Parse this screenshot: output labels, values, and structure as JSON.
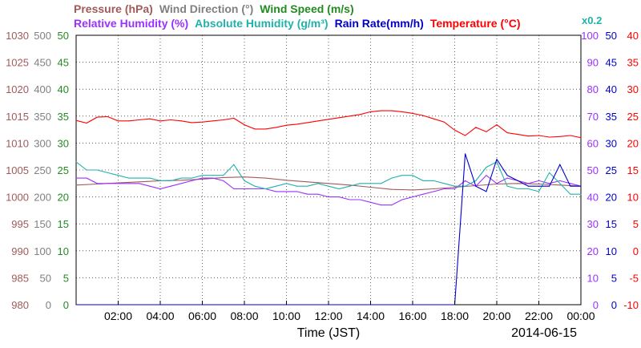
{
  "chart_data": {
    "type": "line",
    "xlabel": "Time (JST)",
    "date_label": "2014-06-15",
    "x_ticks": [
      "02:00",
      "04:00",
      "06:00",
      "08:00",
      "10:00",
      "12:00",
      "14:00",
      "16:00",
      "18:00",
      "20:00",
      "22:00",
      "00:00"
    ],
    "x_range_hours": [
      0,
      24
    ],
    "grid": true,
    "legend_row1": [
      {
        "text": "Pressure (hPa)",
        "color": "#a05a5a"
      },
      {
        "text": "Wind Direction (°)",
        "color": "#808080"
      },
      {
        "text": "Wind Speed (m/s)",
        "color": "#228b22"
      }
    ],
    "legend_row2": [
      {
        "text": "Relative Humidity (%)",
        "color": "#9b30ff"
      },
      {
        "text": "Absolute Humidity (g/m³)",
        "color": "#20b2aa"
      },
      {
        "text": "Rain Rate(mm/h)",
        "color": "#0000cd"
      },
      {
        "text": "Temperature (°C)",
        "color": "#ff0000"
      }
    ],
    "abs_humidity_scale_note": "x0.2",
    "axes": {
      "pressure": {
        "ticks": [
          "1030",
          "1025",
          "1020",
          "1015",
          "1010",
          "1005",
          "1000",
          "995",
          "990",
          "985",
          "980"
        ],
        "range": [
          980,
          1030
        ],
        "color": "#a05a5a"
      },
      "wind_direction": {
        "ticks": [
          "500",
          "450",
          "400",
          "350",
          "300",
          "250",
          "200",
          "150",
          "100",
          "50",
          "0"
        ],
        "range": [
          0,
          500
        ],
        "color": "#808080"
      },
      "wind_speed": {
        "ticks": [
          "50",
          "45",
          "40",
          "35",
          "30",
          "25",
          "20",
          "15",
          "10",
          "5",
          "0"
        ],
        "range": [
          0,
          50
        ],
        "color": "#228b22"
      },
      "humidity": {
        "ticks": [
          "100",
          "90",
          "80",
          "70",
          "60",
          "50",
          "40",
          "30",
          "20",
          "10",
          "0"
        ],
        "range": [
          0,
          100
        ],
        "color": "#9b30ff"
      },
      "rain_rate": {
        "ticks": [
          "50",
          "45",
          "40",
          "35",
          "30",
          "25",
          "20",
          "15",
          "10",
          "5",
          "0"
        ],
        "range": [
          0,
          50
        ],
        "color": "#0000cd"
      },
      "temperature": {
        "ticks": [
          "40",
          "35",
          "30",
          "25",
          "20",
          "15",
          "10",
          "5",
          "0",
          "-5",
          "-10"
        ],
        "range": [
          -10,
          40
        ],
        "color": "#ff0000"
      }
    },
    "series": [
      {
        "name": "Temperature (°C)",
        "axis": "temperature",
        "color": "#ff0000",
        "x": [
          0,
          0.5,
          1,
          1.5,
          2,
          2.5,
          3,
          3.5,
          4,
          4.5,
          5,
          5.5,
          6,
          6.5,
          7,
          7.5,
          8,
          8.5,
          9,
          9.5,
          10,
          10.5,
          11,
          11.5,
          12,
          12.5,
          13,
          13.5,
          14,
          14.5,
          15,
          15.5,
          16,
          16.5,
          17,
          17.5,
          18,
          18.5,
          19,
          19.5,
          20,
          20.5,
          21,
          21.5,
          22,
          22.5,
          23,
          23.5,
          24
        ],
        "values": [
          24.2,
          23.7,
          24.8,
          24.9,
          24.1,
          24.1,
          24.3,
          24.5,
          24.1,
          24.3,
          24.1,
          23.8,
          23.9,
          24.1,
          24.3,
          24.6,
          23.4,
          22.6,
          22.6,
          22.9,
          23.3,
          23.5,
          23.8,
          24.1,
          24.4,
          24.7,
          25.0,
          25.3,
          25.8,
          26.0,
          26.0,
          25.8,
          25.5,
          25.1,
          24.5,
          23.9,
          22.4,
          21.4,
          22.9,
          22.1,
          23.4,
          21.9,
          21.6,
          21.3,
          21.4,
          21.1,
          21.2,
          21.4,
          21.0
        ]
      },
      {
        "name": "Pressure (hPa)",
        "axis": "pressure",
        "color": "#a05a5a",
        "x": [
          0,
          1,
          2,
          3,
          4,
          5,
          6,
          7,
          8,
          9,
          10,
          11,
          12,
          13,
          14,
          15,
          16,
          17,
          18,
          19,
          20,
          21,
          22,
          23,
          24
        ],
        "values": [
          1002.2,
          1002.4,
          1002.6,
          1002.8,
          1003.0,
          1003.1,
          1003.3,
          1003.6,
          1003.7,
          1003.5,
          1003.1,
          1002.8,
          1002.5,
          1002.2,
          1001.8,
          1001.4,
          1001.3,
          1001.5,
          1001.8,
          1002.1,
          1002.4,
          1002.5,
          1002.4,
          1002.2,
          1002.0
        ]
      },
      {
        "name": "Relative Humidity (%)",
        "axis": "humidity",
        "color": "#9b30ff",
        "x": [
          0,
          0.5,
          1,
          1.5,
          2,
          2.5,
          3,
          3.5,
          4,
          4.5,
          5,
          5.5,
          6,
          6.5,
          7,
          7.5,
          8,
          8.5,
          9,
          9.5,
          10,
          10.5,
          11,
          11.5,
          12,
          12.5,
          13,
          13.5,
          14,
          14.5,
          15,
          15.5,
          16,
          16.5,
          17,
          17.5,
          18,
          18.5,
          19,
          19.5,
          20,
          20.5,
          21,
          21.5,
          22,
          22.5,
          23,
          23.5,
          24
        ],
        "values": [
          47,
          47,
          45,
          45,
          45,
          45,
          45,
          44,
          43,
          44,
          45,
          46,
          47,
          47,
          46,
          43,
          43,
          43,
          43,
          42,
          42,
          42,
          41,
          41,
          40,
          40,
          39,
          39,
          38,
          37,
          37,
          39,
          40,
          41,
          42,
          43,
          43,
          46,
          44,
          48,
          45,
          47,
          46,
          45,
          46,
          45,
          46,
          45,
          44
        ]
      },
      {
        "name": "Absolute Humidity (g/m³)",
        "axis": "humidity",
        "color": "#20b2aa",
        "x": [
          0,
          0.5,
          1,
          1.5,
          2,
          2.5,
          3,
          3.5,
          4,
          4.5,
          5,
          5.5,
          6,
          6.5,
          7,
          7.5,
          8,
          8.5,
          9,
          9.5,
          10,
          10.5,
          11,
          11.5,
          12,
          12.5,
          13,
          13.5,
          14,
          14.5,
          15,
          15.5,
          16,
          16.5,
          17,
          17.5,
          18,
          18.5,
          19,
          19.5,
          20,
          20.5,
          21,
          21.5,
          22,
          22.5,
          23,
          23.5,
          24
        ],
        "values": [
          53,
          50,
          50,
          49,
          48,
          47,
          47,
          47,
          46,
          46,
          47,
          47,
          48,
          48,
          48,
          52,
          46,
          44,
          43,
          44,
          45,
          44,
          44,
          45,
          44,
          43,
          44,
          45,
          45,
          45,
          47,
          48,
          48,
          46,
          46,
          45,
          44,
          44,
          46,
          51,
          53,
          44,
          43,
          43,
          42,
          49,
          45,
          41,
          41
        ]
      },
      {
        "name": "Rain Rate(mm/h)",
        "axis": "rain_rate",
        "color": "#0000cd",
        "x": [
          0,
          1,
          2,
          3,
          4,
          5,
          6,
          7,
          8,
          9,
          10,
          11,
          12,
          13,
          14,
          15,
          16,
          17,
          18,
          18.5,
          19,
          19.5,
          20,
          20.5,
          21,
          21.5,
          22,
          22.5,
          23,
          23.5,
          24
        ],
        "values": [
          0,
          0,
          0,
          0,
          0,
          0,
          0,
          0,
          0,
          0,
          0,
          0,
          0,
          0,
          0,
          0,
          0,
          0,
          0,
          28,
          22,
          21,
          27,
          24,
          23,
          22,
          22,
          22,
          26,
          22,
          22
        ]
      }
    ]
  }
}
